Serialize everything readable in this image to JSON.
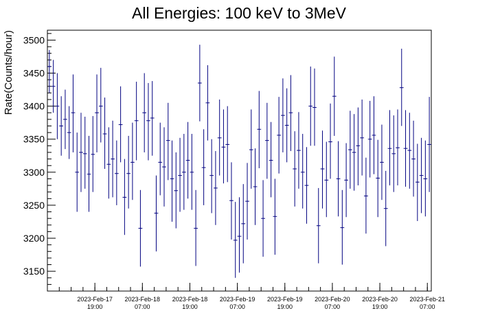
{
  "chart_data": {
    "type": "scatter",
    "title": "All Energies:  100 keV to 3MeV",
    "xlabel": "",
    "ylabel": "Rate(Counts/hour)",
    "x_start": "2023-02-17T07:00",
    "x_end": "2023-02-21T08:00",
    "ylim": [
      3120,
      3515
    ],
    "y_ticks": [
      3150,
      3200,
      3250,
      3300,
      3350,
      3400,
      3450,
      3500
    ],
    "x_ticks": [
      {
        "time": "2023-02-17T19:00",
        "date": "2023-Feb-17",
        "hour": "19:00"
      },
      {
        "time": "2023-02-18T07:00",
        "date": "2023-Feb-18",
        "hour": "07:00"
      },
      {
        "time": "2023-02-18T19:00",
        "date": "2023-Feb-18",
        "hour": "19:00"
      },
      {
        "time": "2023-02-19T07:00",
        "date": "2023-Feb-19",
        "hour": "07:00"
      },
      {
        "time": "2023-02-19T19:00",
        "date": "2023-Feb-19",
        "hour": "19:00"
      },
      {
        "time": "2023-02-20T07:00",
        "date": "2023-Feb-20",
        "hour": "07:00"
      },
      {
        "time": "2023-02-20T19:00",
        "date": "2023-Feb-20",
        "hour": "19:00"
      },
      {
        "time": "2023-02-21T07:00",
        "date": "2023-Feb-21",
        "hour": "07:00"
      }
    ],
    "grid": false,
    "legend": "none",
    "color": "#000080",
    "bin_width_hours": 1,
    "series": [
      {
        "values": [
          3460,
          3430,
          3400,
          3370,
          3380,
          3360,
          3390,
          3300,
          3330,
          3328,
          3297,
          3327,
          3390,
          3400,
          3358,
          3312,
          3320,
          3298,
          3372,
          3262,
          3298,
          3315,
          3378,
          3215,
          3390,
          3378,
          3382,
          3238,
          3315,
          3308,
          3348,
          3290,
          3272,
          3295,
          3300,
          3318,
          3300,
          3215,
          3435,
          3307,
          3405,
          3295,
          3276,
          3352,
          3338,
          3342,
          3257,
          3197,
          3203,
          3222,
          3256,
          3334,
          3278,
          3365,
          3230,
          3348,
          3318,
          3233,
          3356,
          3386,
          3371,
          3390,
          3305,
          3333,
          3300,
          3280,
          3400,
          3398,
          3219,
          3305,
          3288,
          3346,
          3415,
          3290,
          3216,
          3288,
          3334,
          3330,
          3340,
          3352,
          3264,
          3350,
          3356,
          3291,
          3315,
          3245,
          3336,
          3328,
          3337,
          3428,
          3336,
          3333,
          3320,
          3285,
          3295,
          3290,
          3342
        ],
        "err_low": [
          3420,
          3390,
          3350,
          3325,
          3335,
          3320,
          3330,
          3240,
          3270,
          3275,
          3240,
          3270,
          3330,
          3345,
          3305,
          3260,
          3262,
          3250,
          3315,
          3205,
          3245,
          3258,
          3318,
          3157,
          3330,
          3318,
          3325,
          3180,
          3265,
          3248,
          3288,
          3225,
          3215,
          3240,
          3243,
          3260,
          3243,
          3158,
          3377,
          3250,
          3348,
          3238,
          3220,
          3295,
          3283,
          3285,
          3198,
          3140,
          3148,
          3162,
          3198,
          3275,
          3220,
          3306,
          3172,
          3290,
          3262,
          3175,
          3298,
          3330,
          3315,
          3332,
          3248,
          3275,
          3245,
          3222,
          3340,
          3340,
          3162,
          3245,
          3232,
          3290,
          3355,
          3233,
          3160,
          3232,
          3275,
          3272,
          3280,
          3295,
          3207,
          3292,
          3297,
          3232,
          3258,
          3188,
          3280,
          3270,
          3280,
          3370,
          3278,
          3275,
          3263,
          3226,
          3238,
          3233,
          3270
        ],
        "err_high": [
          3485,
          3470,
          3450,
          3415,
          3425,
          3400,
          3448,
          3360,
          3390,
          3384,
          3355,
          3385,
          3448,
          3458,
          3413,
          3368,
          3378,
          3348,
          3430,
          3320,
          3355,
          3375,
          3437,
          3273,
          3450,
          3435,
          3438,
          3295,
          3375,
          3368,
          3405,
          3348,
          3330,
          3352,
          3358,
          3376,
          3358,
          3273,
          3493,
          3365,
          3462,
          3350,
          3332,
          3410,
          3395,
          3400,
          3315,
          3255,
          3262,
          3282,
          3314,
          3395,
          3336,
          3423,
          3288,
          3405,
          3376,
          3290,
          3414,
          3442,
          3427,
          3447,
          3362,
          3391,
          3358,
          3338,
          3460,
          3457,
          3276,
          3363,
          3346,
          3404,
          3475,
          3347,
          3273,
          3344,
          3393,
          3388,
          3398,
          3410,
          3322,
          3408,
          3415,
          3349,
          3372,
          3302,
          3394,
          3386,
          3395,
          3487,
          3394,
          3390,
          3378,
          3343,
          3352,
          3348,
          3414
        ]
      }
    ]
  }
}
